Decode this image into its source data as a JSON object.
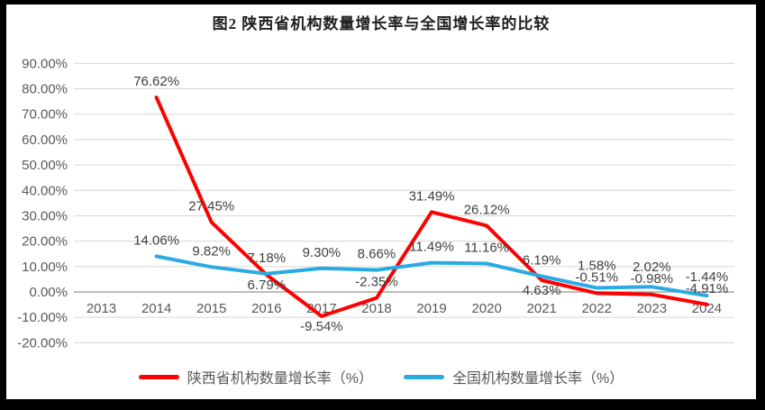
{
  "frame": {
    "border_color": "#000000",
    "background": "#FFFFFF"
  },
  "chart_data": {
    "type": "line",
    "title": "图2 陕西省机构数量增长率与全国增长率的比较",
    "categories": [
      "2013",
      "2014",
      "2015",
      "2016",
      "2017",
      "2018",
      "2019",
      "2020",
      "2021",
      "2022",
      "2023",
      "2024"
    ],
    "series": [
      {
        "id": "shaanxi-growth-rate",
        "name": "陕西省机构数量增长率（%）",
        "color": "#FE0000",
        "values": [
          null,
          76.62,
          27.45,
          6.79,
          -9.54,
          -2.35,
          31.49,
          26.12,
          4.63,
          -0.51,
          -0.98,
          -4.91
        ],
        "label_positions": [
          null,
          "above",
          "above",
          "below",
          "below",
          "above",
          "above",
          "above",
          "below",
          "above",
          "above",
          "above"
        ]
      },
      {
        "id": "national-growth-rate",
        "name": "全国机构数量增长率（%）",
        "color": "#29ABE2",
        "values": [
          null,
          14.06,
          9.82,
          7.18,
          9.3,
          8.66,
          11.49,
          11.16,
          6.19,
          1.58,
          2.02,
          -1.44
        ],
        "label_positions": [
          null,
          "above",
          "above",
          "above",
          "above",
          "above",
          "above",
          "above",
          "above",
          "above",
          "above",
          "above"
        ]
      }
    ],
    "y_axis": {
      "min": -20,
      "max": 90,
      "step": 10,
      "tick_labels": [
        "90.00%",
        "80.00%",
        "70.00%",
        "60.00%",
        "50.00%",
        "40.00%",
        "30.00%",
        "20.00%",
        "10.00%",
        "0.00%",
        "-10.00%",
        "-20.00%"
      ]
    },
    "data_label_format": "0.00%",
    "grid": true,
    "legend_position": "bottom",
    "colors": {
      "grid_line": "#D6D6D6",
      "zero_line": "#A6A6A6",
      "data_label": "#404040",
      "axis_label": "#595959",
      "title": "#1F1F1F"
    }
  }
}
